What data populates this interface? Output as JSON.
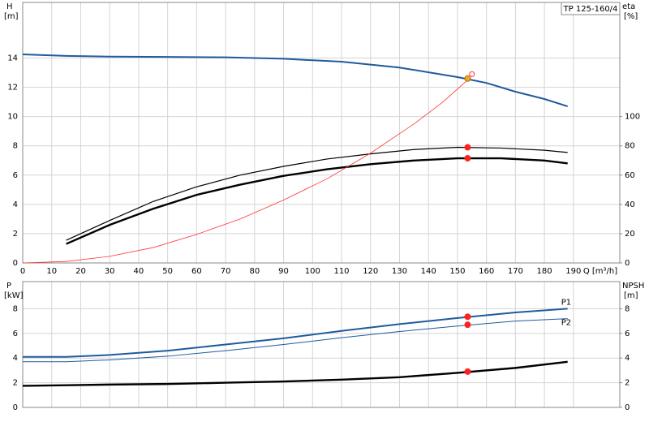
{
  "chart_data": [
    {
      "type": "line",
      "label": "TP 125-160/4",
      "ylabel": "H",
      "yunit": "[m]",
      "y2label": "eta",
      "y2unit": "[%]",
      "xlabel": "Q [m³/h]",
      "xlim": [
        0,
        206
      ],
      "xticks": [
        0,
        10,
        20,
        30,
        40,
        50,
        60,
        70,
        80,
        90,
        100,
        110,
        120,
        130,
        140,
        150,
        160,
        170,
        180,
        190
      ],
      "ylim": [
        0,
        17.8
      ],
      "yticks": [
        0,
        2,
        4,
        6,
        8,
        10,
        12,
        14
      ],
      "y2lim": [
        0,
        178
      ],
      "y2ticks": [
        0,
        20,
        40,
        60,
        80,
        100
      ],
      "grid": true,
      "series": [
        {
          "color": "#1f5b9c",
          "axis": "y",
          "x": [
            0,
            15,
            30,
            50,
            70,
            90,
            110,
            130,
            150,
            160,
            170,
            180,
            188
          ],
          "values": [
            14.25,
            14.15,
            14.1,
            14.08,
            14.05,
            13.95,
            13.75,
            13.35,
            12.7,
            12.3,
            11.7,
            11.2,
            10.7
          ]
        },
        {
          "color": "#000000",
          "axis": "y2",
          "x": [
            15,
            30,
            45,
            60,
            75,
            90,
            105,
            120,
            135,
            150,
            165,
            180,
            188
          ],
          "values": [
            15.5,
            29,
            42,
            52,
            60,
            66,
            71,
            74.5,
            77.5,
            79,
            78.5,
            77,
            75.5
          ]
        },
        {
          "color": "#000000",
          "axis": "y2",
          "x": [
            15,
            30,
            45,
            60,
            75,
            90,
            105,
            120,
            135,
            150,
            165,
            180,
            188
          ],
          "values": [
            13,
            26,
            37,
            46.5,
            53.5,
            59.5,
            64,
            67.5,
            70,
            71.5,
            71.5,
            70,
            68
          ]
        },
        {
          "color": "#ff3333",
          "axis": "y",
          "x": [
            0,
            15,
            30,
            45,
            60,
            75,
            90,
            105,
            120,
            135,
            145,
            153.5
          ],
          "values": [
            0,
            0.1,
            0.45,
            1.05,
            1.95,
            3.0,
            4.3,
            5.75,
            7.5,
            9.5,
            11.0,
            12.5
          ]
        }
      ],
      "markers": [
        {
          "x": 153.5,
          "y": 12.6,
          "axis": "y",
          "color": "#f5a623"
        },
        {
          "x": 155,
          "y": 12.9,
          "axis": "y",
          "color": "#ff3333"
        },
        {
          "x": 153.5,
          "y": 79,
          "axis": "y2",
          "color": "#ff2020"
        },
        {
          "x": 153.5,
          "y": 71.5,
          "axis": "y2",
          "color": "#ff2020"
        }
      ]
    },
    {
      "type": "line",
      "ylabel": "P",
      "yunit": "[kW]",
      "y2label": "NPSH",
      "y2unit": "[m]",
      "xlim": [
        0,
        206
      ],
      "xticks": [
        0,
        10,
        20,
        30,
        40,
        50,
        60,
        70,
        80,
        90,
        100,
        110,
        120,
        130,
        140,
        150,
        160,
        170,
        180,
        190
      ],
      "ylim": [
        0,
        10.2
      ],
      "yticks": [
        0,
        2,
        4,
        6,
        8
      ],
      "y2lim": [
        0,
        10.2
      ],
      "y2ticks": [
        0,
        2,
        4,
        6,
        8
      ],
      "grid": true,
      "series": [
        {
          "name": "P1",
          "color": "#1f5b9c",
          "axis": "y",
          "x": [
            0,
            15,
            30,
            50,
            70,
            90,
            110,
            130,
            150,
            170,
            188
          ],
          "values": [
            4.1,
            4.1,
            4.25,
            4.6,
            5.1,
            5.6,
            6.2,
            6.75,
            7.25,
            7.7,
            8.0
          ]
        },
        {
          "name": "P2",
          "color": "#1f5b9c",
          "axis": "y",
          "x": [
            0,
            15,
            30,
            50,
            70,
            90,
            110,
            130,
            150,
            170,
            188
          ],
          "values": [
            3.7,
            3.7,
            3.85,
            4.15,
            4.6,
            5.1,
            5.65,
            6.15,
            6.6,
            7.0,
            7.2
          ]
        },
        {
          "color": "#000000",
          "axis": "y2",
          "x": [
            0,
            15,
            30,
            50,
            70,
            90,
            110,
            130,
            150,
            170,
            188
          ],
          "values": [
            1.75,
            1.8,
            1.85,
            1.9,
            2.0,
            2.1,
            2.25,
            2.45,
            2.8,
            3.2,
            3.7
          ]
        }
      ],
      "markers": [
        {
          "x": 153.5,
          "y": 7.35,
          "axis": "y",
          "color": "#ff2020"
        },
        {
          "x": 153.5,
          "y": 6.7,
          "axis": "y",
          "color": "#ff2020"
        },
        {
          "x": 153.5,
          "y": 2.9,
          "axis": "y2",
          "color": "#ff2020"
        }
      ]
    }
  ]
}
